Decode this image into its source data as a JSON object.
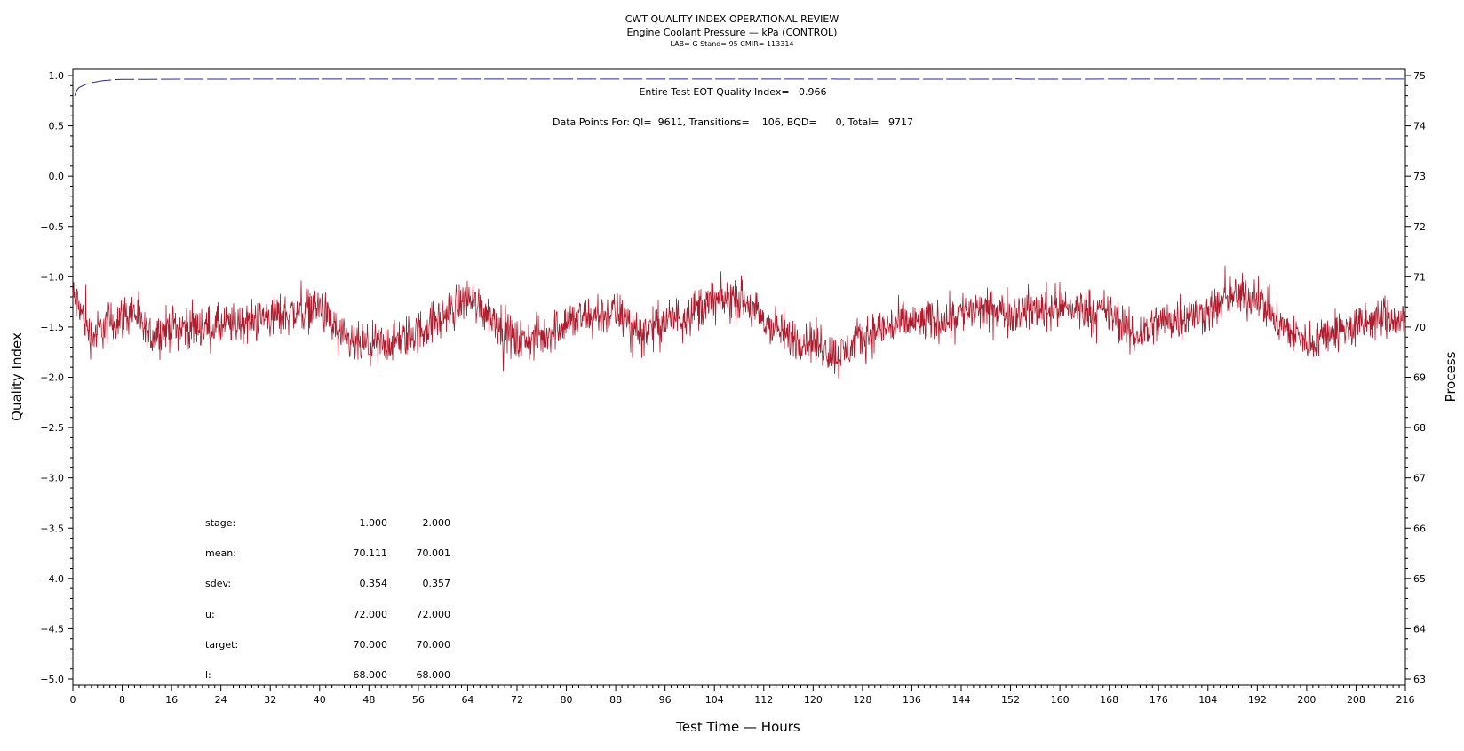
{
  "chart_data": {
    "type": "line",
    "title": "CWT QUALITY INDEX OPERATIONAL REVIEW",
    "subtitle": "Engine Coolant Pressure — kPa (CONTROL)",
    "subtitle2": "LAB= G Stand= 95 CMIR= 113314",
    "xlabel": "Test Time — Hours",
    "ylabel": "Quality Index",
    "y2label": "Process",
    "xlim": [
      0,
      216
    ],
    "ylim": [
      -5.0,
      1.0
    ],
    "y2lim": [
      63,
      75
    ],
    "x_ticks": [
      0,
      8,
      16,
      24,
      32,
      40,
      48,
      56,
      64,
      72,
      80,
      88,
      96,
      104,
      112,
      120,
      128,
      136,
      144,
      152,
      160,
      168,
      176,
      184,
      192,
      200,
      208,
      216
    ],
    "y_ticks": [
      1.0,
      0.5,
      0.0,
      -0.5,
      -1.0,
      -1.5,
      -2.0,
      -2.5,
      -3.0,
      -3.5,
      -4.0,
      -4.5,
      -5.0
    ],
    "y2_ticks": [
      63,
      64,
      65,
      66,
      67,
      68,
      69,
      70,
      71,
      72,
      73,
      74,
      75
    ],
    "annotations": {
      "eot": "Entire Test EOT Quality Index=   0.966",
      "points": "Data Points For: QI=  9611, Transitions=    106, BQD=      0, Total=   9717"
    },
    "series": [
      {
        "name": "Quality Index",
        "color": "#2a2a8a",
        "axis": "left",
        "style": "dashed",
        "points": [
          [
            0.3,
            0.8
          ],
          [
            0.6,
            0.85
          ],
          [
            1,
            0.88
          ],
          [
            2,
            0.91
          ],
          [
            3,
            0.93
          ],
          [
            4,
            0.94
          ],
          [
            5,
            0.95
          ],
          [
            6,
            0.955
          ],
          [
            7,
            0.96
          ],
          [
            8,
            0.962
          ],
          [
            12,
            0.963
          ],
          [
            20,
            0.965
          ],
          [
            60,
            0.966
          ],
          [
            120,
            0.966
          ],
          [
            123.5,
            0.966
          ],
          [
            124,
            0.965
          ],
          [
            152,
            0.965
          ],
          [
            153,
            0.968
          ],
          [
            154,
            0.965
          ],
          [
            216,
            0.966
          ]
        ]
      },
      {
        "name": "Process",
        "color": "#b01c2e",
        "axis": "right",
        "style": "solid",
        "keypoints": [
          [
            0,
            70.6
          ],
          [
            1,
            70.4
          ],
          [
            3,
            69.8
          ],
          [
            6,
            70.1
          ],
          [
            10,
            70.3
          ],
          [
            12,
            69.8
          ],
          [
            16,
            70.0
          ],
          [
            24,
            70.0
          ],
          [
            32,
            70.2
          ],
          [
            40,
            70.4
          ],
          [
            44,
            69.7
          ],
          [
            48,
            69.6
          ],
          [
            52,
            69.7
          ],
          [
            56,
            69.9
          ],
          [
            60,
            70.2
          ],
          [
            64,
            70.6
          ],
          [
            68,
            70.2
          ],
          [
            72,
            69.7
          ],
          [
            76,
            69.8
          ],
          [
            80,
            70.1
          ],
          [
            84,
            70.2
          ],
          [
            88,
            70.3
          ],
          [
            92,
            69.9
          ],
          [
            96,
            70.1
          ],
          [
            100,
            70.3
          ],
          [
            104,
            70.5
          ],
          [
            108,
            70.6
          ],
          [
            112,
            70.1
          ],
          [
            116,
            69.8
          ],
          [
            120,
            69.7
          ],
          [
            124,
            69.4
          ],
          [
            128,
            69.8
          ],
          [
            132,
            70.0
          ],
          [
            136,
            70.1
          ],
          [
            140,
            70.1
          ],
          [
            144,
            70.3
          ],
          [
            152,
            70.3
          ],
          [
            160,
            70.4
          ],
          [
            168,
            70.3
          ],
          [
            172,
            69.8
          ],
          [
            176,
            70.1
          ],
          [
            184,
            70.3
          ],
          [
            188,
            70.6
          ],
          [
            192,
            70.6
          ],
          [
            196,
            70.0
          ],
          [
            200,
            69.7
          ],
          [
            204,
            69.9
          ],
          [
            208,
            70.0
          ],
          [
            212,
            70.2
          ],
          [
            216,
            70.1
          ]
        ],
        "noise_amplitude": 0.35
      }
    ],
    "stats_table": {
      "rows": [
        {
          "label": "stage:",
          "v1": "1.000",
          "v2": "2.000"
        },
        {
          "label": "mean:",
          "v1": "70.111",
          "v2": "70.001"
        },
        {
          "label": "sdev:",
          "v1": "0.354",
          "v2": "0.357"
        },
        {
          "label": "u:",
          "v1": "72.000",
          "v2": "72.000"
        },
        {
          "label": "target:",
          "v1": "70.000",
          "v2": "70.000"
        },
        {
          "label": "l:",
          "v1": "68.000",
          "v2": "68.000"
        }
      ]
    }
  }
}
